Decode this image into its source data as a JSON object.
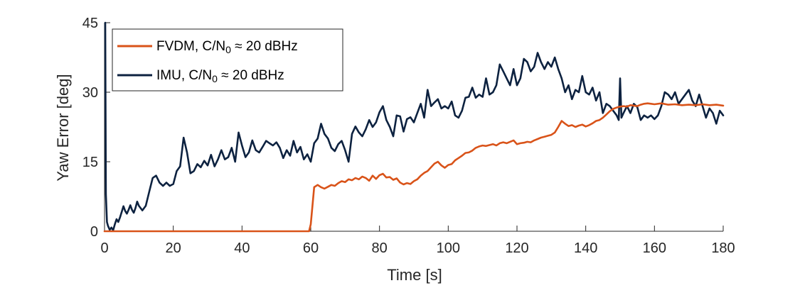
{
  "chart_data": {
    "type": "line",
    "xlabel": "Time [s]",
    "ylabel": "Yaw Error [deg]",
    "xlim": [
      0,
      180
    ],
    "ylim": [
      0,
      45
    ],
    "xticks": [
      0,
      20,
      40,
      60,
      80,
      100,
      120,
      140,
      160,
      180
    ],
    "yticks": [
      0,
      15,
      30,
      45
    ],
    "grid": false,
    "legend_location": "top-left",
    "series": [
      {
        "name": "FVDM, C/N0 ≈ 20 dBHz",
        "legend": {
          "main": "FVDM, C/N",
          "sub": "0",
          "tail": " ≈ 20 dBHz"
        },
        "color": "#D95319",
        "x": [
          0,
          10,
          20,
          30,
          40,
          50,
          59.5,
          60,
          61,
          62,
          63,
          64,
          65,
          66,
          67,
          68,
          69,
          70,
          71,
          72,
          73,
          74,
          75,
          76,
          77,
          78,
          79,
          80,
          81,
          82,
          83,
          84,
          85,
          86,
          87,
          88,
          89,
          90,
          91,
          92,
          93,
          94,
          95,
          96,
          97,
          98,
          99,
          100,
          101,
          102,
          103,
          104,
          105,
          106,
          107,
          108,
          109,
          110,
          111,
          112,
          113,
          114,
          115,
          116,
          117,
          118,
          119,
          120,
          121,
          122,
          123,
          124,
          125,
          126,
          127,
          128,
          129,
          130,
          131,
          132,
          133,
          134,
          135,
          136,
          137,
          138,
          139,
          140,
          141,
          142,
          143,
          144,
          145,
          146,
          147,
          148,
          149,
          150,
          151,
          152,
          153,
          154,
          155,
          156,
          157,
          158,
          159,
          160,
          162,
          164,
          166,
          168,
          170,
          172,
          174,
          176,
          178,
          180
        ],
        "y": [
          0,
          0,
          0,
          0,
          0,
          0,
          0,
          1.5,
          9.5,
          10.0,
          9.5,
          9.2,
          9.6,
          10.0,
          9.8,
          10.4,
          10.8,
          10.6,
          11.2,
          11.0,
          11.5,
          11.2,
          11.8,
          11.5,
          10.9,
          12.0,
          11.3,
          12.1,
          12.4,
          11.6,
          11.7,
          11.1,
          11.4,
          10.5,
          10.1,
          10.4,
          10.2,
          10.8,
          11.2,
          12.0,
          12.6,
          13.0,
          13.8,
          14.6,
          15.0,
          14.2,
          13.7,
          14.3,
          14.5,
          15.3,
          15.8,
          16.3,
          16.9,
          17.0,
          17.4,
          18.0,
          18.3,
          18.5,
          18.4,
          18.6,
          18.8,
          18.5,
          19.0,
          19.2,
          19.0,
          19.3,
          19.6,
          18.8,
          19.0,
          19.1,
          19.3,
          19.2,
          19.6,
          19.9,
          20.2,
          20.4,
          20.6,
          20.8,
          21.3,
          22.5,
          23.8,
          23.2,
          22.7,
          22.9,
          22.5,
          22.8,
          23.0,
          22.6,
          22.9,
          23.3,
          23.8,
          24.0,
          24.5,
          25.2,
          25.9,
          26.4,
          26.7,
          26.9,
          27.0,
          26.9,
          27.2,
          27.1,
          27.0,
          27.3,
          27.5,
          27.6,
          27.5,
          27.4,
          27.6,
          27.3,
          27.4,
          27.2,
          27.3,
          27.2,
          27.4,
          27.2,
          27.3,
          27.1
        ]
      },
      {
        "name": "IMU, C/N0 ≈ 20 dBHz",
        "legend": {
          "main": "IMU, C/N",
          "sub": "0",
          "tail": " ≈ 20 dBHz"
        },
        "color": "#0D2240",
        "x": [
          0.2,
          0.4,
          0.7,
          1,
          1.5,
          2,
          2.5,
          3,
          3.5,
          4,
          4.5,
          5,
          5.5,
          6,
          6.5,
          7,
          7.5,
          8,
          8.5,
          9,
          9.5,
          10,
          11,
          12,
          13,
          14,
          15,
          16,
          17,
          18,
          19,
          20,
          21,
          22,
          23,
          24,
          25,
          26,
          27,
          28,
          29,
          30,
          31,
          32,
          33,
          34,
          35,
          36,
          37,
          38,
          39,
          40,
          41,
          42,
          43,
          44,
          45,
          46,
          47,
          48,
          49,
          50,
          51,
          52,
          53,
          54,
          55,
          56,
          57,
          58,
          59,
          60,
          61,
          62,
          63,
          64,
          65,
          66,
          67,
          68,
          69,
          70,
          71,
          72,
          73,
          74,
          75,
          76,
          77,
          78,
          79,
          80,
          81,
          82,
          83,
          84,
          85,
          86,
          87,
          88,
          89,
          90,
          91,
          92,
          93,
          94,
          95,
          96,
          97,
          98,
          99,
          100,
          101,
          102,
          103,
          104,
          105,
          106,
          107,
          108,
          109,
          110,
          111,
          112,
          113,
          114,
          115,
          116,
          117,
          118,
          119,
          120,
          121,
          122,
          123,
          124,
          125,
          126,
          127,
          128,
          129,
          130,
          131,
          132,
          133,
          134,
          135,
          136,
          137,
          138,
          139,
          140,
          141,
          142,
          143,
          144,
          145,
          146,
          147,
          148,
          149,
          149.6,
          150,
          150.4,
          151,
          152,
          153,
          154,
          155,
          156,
          157,
          158,
          159,
          160,
          161,
          162,
          163,
          164,
          165,
          166,
          167,
          168,
          169,
          170,
          171,
          172,
          173,
          174,
          175,
          176,
          177,
          178,
          179,
          180
        ],
        "y": [
          45,
          8,
          2.0,
          1.2,
          0.3,
          0.8,
          0.2,
          1.5,
          2.6,
          2.0,
          3.0,
          4.2,
          5.4,
          4.4,
          3.8,
          4.6,
          5.6,
          4.6,
          4.0,
          5.0,
          6.4,
          5.5,
          4.5,
          5.5,
          8.5,
          11.5,
          12.0,
          10.5,
          9.8,
          10.5,
          9.8,
          10.2,
          13.0,
          14.0,
          20.2,
          17.0,
          12.5,
          13.0,
          14.5,
          13.8,
          15.2,
          14.2,
          16.5,
          14.0,
          15.5,
          17.5,
          15.5,
          16.0,
          18.0,
          15.0,
          21.3,
          18.5,
          16.0,
          17.0,
          19.6,
          17.5,
          17.0,
          18.2,
          19.5,
          19.0,
          18.5,
          19.2,
          18.0,
          15.8,
          17.5,
          16.3,
          19.5,
          17.0,
          18.2,
          15.5,
          16.6,
          15.0,
          19.0,
          20.0,
          23.2,
          21.0,
          20.0,
          18.0,
          17.3,
          18.8,
          19.5,
          17.5,
          15.0,
          21.0,
          22.6,
          21.3,
          20.5,
          22.0,
          24.0,
          22.5,
          23.5,
          25.7,
          27.0,
          24.0,
          22.5,
          20.5,
          25.0,
          24.8,
          21.5,
          24.2,
          24.6,
          23.5,
          25.5,
          27.5,
          24.5,
          30.5,
          27.0,
          27.8,
          28.5,
          26.5,
          27.0,
          26.5,
          28.0,
          25.0,
          24.5,
          26.0,
          28.8,
          29.0,
          31.0,
          28.8,
          29.5,
          29.0,
          33.0,
          29.5,
          30.0,
          31.5,
          36.0,
          34.5,
          33.0,
          31.5,
          35.0,
          31.5,
          33.0,
          37.2,
          36.5,
          34.5,
          35.5,
          38.5,
          36.5,
          35.0,
          36.5,
          35.5,
          37.5,
          35.0,
          33.0,
          30.0,
          31.5,
          28.5,
          30.5,
          30.0,
          33.5,
          30.0,
          29.5,
          31.0,
          28.2,
          30.0,
          25.5,
          27.5,
          27.0,
          26.0,
          25.0,
          24.0,
          33.0,
          24.5,
          25.5,
          27.0,
          25.5,
          27.5,
          26.8,
          24.0,
          25.0,
          24.5,
          25.0,
          24.2,
          25.0,
          27.0,
          30.0,
          29.5,
          28.5,
          30.0,
          27.5,
          28.5,
          29.5,
          30.5,
          28.2,
          27.0,
          29.5,
          27.0,
          24.5,
          26.5,
          25.5,
          23.2,
          26.0,
          25.0
        ]
      }
    ]
  }
}
